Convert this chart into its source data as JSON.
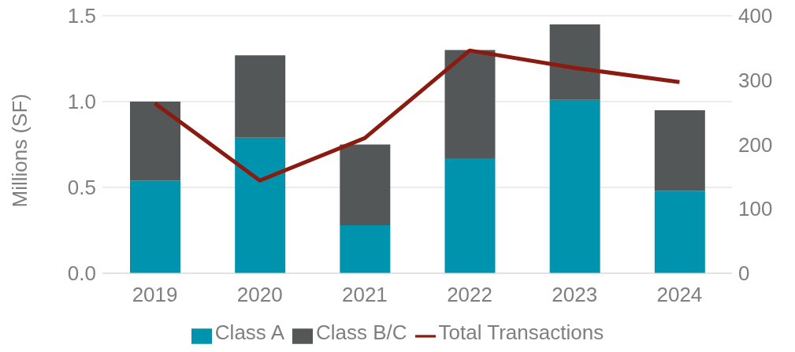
{
  "chart_data": {
    "type": "bar",
    "stacked": true,
    "ylabel": "Millions (SF)",
    "categories": [
      "2019",
      "2020",
      "2021",
      "2022",
      "2023",
      "2024"
    ],
    "series": [
      {
        "name": "Class A",
        "color": "#0093ad",
        "values": [
          0.54,
          0.79,
          0.28,
          0.67,
          1.01,
          0.48
        ]
      },
      {
        "name": "Class B/C",
        "color": "#545758",
        "values": [
          0.46,
          0.48,
          0.47,
          0.63,
          0.44,
          0.47
        ]
      },
      {
        "name": "Total Transactions",
        "type": "line",
        "axis": "y2",
        "color": "#8b1a10",
        "values": [
          264,
          144,
          210,
          346,
          319,
          297
        ]
      }
    ],
    "ylim": [
      0,
      1.5
    ],
    "yticks": [
      {
        "value": 0,
        "label": "0.0"
      },
      {
        "value": 0.5,
        "label": "0.5"
      },
      {
        "value": 1,
        "label": "1.0"
      },
      {
        "value": 1.5,
        "label": "1.5"
      }
    ],
    "y2lim": [
      0,
      400
    ],
    "y2ticks": [
      0,
      100,
      200,
      300,
      400
    ],
    "grid": "y",
    "legend": "bottom",
    "marker": "none",
    "line_style": "solid"
  }
}
